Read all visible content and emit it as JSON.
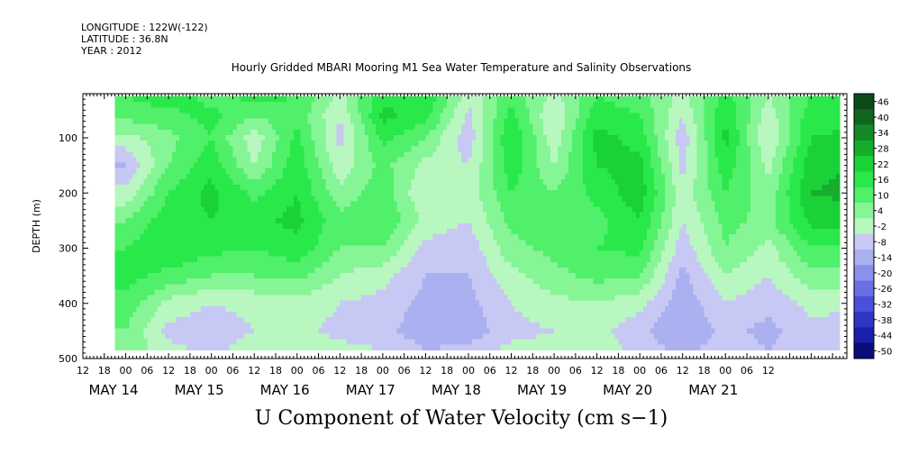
{
  "header": {
    "longitude": "LONGITUDE : 122W(-122)",
    "latitude": "LATITUDE : 36.8N",
    "year": "YEAR : 2012",
    "title": "Hourly Gridded MBARI Mooring M1 Sea Water Temperature and Salinity Observations"
  },
  "chart_data": {
    "type": "heatmap",
    "title": "Hourly Gridded MBARI Mooring M1 Sea Water Temperature and Salinity Observations",
    "bottom_title": "U Component of Water Velocity (cm s−1)",
    "ylabel": "DEPTH (m)",
    "xlabel": "",
    "x_range_hours": [
      0,
      214
    ],
    "y_range_m": [
      20,
      500
    ],
    "y_reversed": true,
    "y_ticks": [
      100,
      200,
      300,
      400,
      500
    ],
    "y_tick_labels": [
      "100",
      "200",
      "300",
      "400",
      "500"
    ],
    "x_hour_tick_labels": [
      "12",
      "18",
      "00",
      "06",
      "12",
      "18",
      "00",
      "06",
      "12",
      "18",
      "00",
      "06",
      "12",
      "18",
      "00",
      "06",
      "12",
      "18",
      "00",
      "06",
      "12",
      "18",
      "00",
      "06",
      "12",
      "18",
      "00",
      "06",
      "12",
      "18",
      "00",
      "06",
      "12"
    ],
    "day_labels": [
      {
        "label": "MAY 14",
        "hour": 0
      },
      {
        "label": "MAY 15",
        "hour": 24
      },
      {
        "label": "MAY 16",
        "hour": 48
      },
      {
        "label": "MAY 17",
        "hour": 72
      },
      {
        "label": "MAY 18",
        "hour": 96
      },
      {
        "label": "MAY 19",
        "hour": 120
      },
      {
        "label": "MAY 20",
        "hour": 144
      },
      {
        "label": "MAY 21",
        "hour": 168
      }
    ],
    "colorbar_labels": [
      "46",
      "40",
      "34",
      "28",
      "22",
      "16",
      "10",
      "4",
      "-2",
      "-8",
      "-14",
      "-20",
      "-26",
      "-32",
      "-38",
      "-44",
      "-50"
    ],
    "colorbar_colors": [
      "#0d4a1a",
      "#10661f",
      "#138a26",
      "#16ad2d",
      "#1ad137",
      "#28e84a",
      "#50f06a",
      "#86f595",
      "#b8f7c0",
      "#c8c8f4",
      "#aab0f0",
      "#8a90ec",
      "#6a70e4",
      "#4a50d8",
      "#2e36c4",
      "#1a20a8",
      "#0a0c7a"
    ],
    "data_start_hour": 9,
    "data_end_hour": 212,
    "surface_depth_m": 25,
    "bottom_depth_m": 485,
    "profiles": [
      {
        "hour": 12,
        "depths": [
          25,
          60,
          100,
          150,
          200,
          250,
          300,
          350,
          400,
          450,
          485
        ],
        "u": [
          10,
          6,
          -4,
          -14,
          -6,
          4,
          10,
          12,
          8,
          4,
          2
        ]
      },
      {
        "hour": 24,
        "depths": [
          25,
          60,
          100,
          150,
          200,
          250,
          300,
          350,
          400,
          450,
          485
        ],
        "u": [
          14,
          8,
          2,
          4,
          10,
          14,
          16,
          8,
          -4,
          -10,
          -6
        ]
      },
      {
        "hour": 36,
        "depths": [
          25,
          60,
          100,
          150,
          200,
          250,
          300,
          350,
          400,
          450,
          485
        ],
        "u": [
          8,
          12,
          10,
          14,
          18,
          16,
          12,
          4,
          -8,
          -12,
          -10
        ]
      },
      {
        "hour": 48,
        "depths": [
          25,
          60,
          100,
          150,
          200,
          250,
          300,
          350,
          400,
          450,
          485
        ],
        "u": [
          12,
          4,
          -6,
          -2,
          8,
          14,
          10,
          4,
          -6,
          -8,
          -4
        ]
      },
      {
        "hour": 60,
        "depths": [
          25,
          60,
          100,
          150,
          200,
          250,
          300,
          350,
          400,
          450,
          485
        ],
        "u": [
          10,
          8,
          12,
          14,
          16,
          18,
          14,
          6,
          -4,
          -6,
          -2
        ]
      },
      {
        "hour": 72,
        "depths": [
          25,
          60,
          100,
          150,
          200,
          250,
          300,
          350,
          400,
          450,
          485
        ],
        "u": [
          -4,
          -8,
          -10,
          -6,
          0,
          6,
          4,
          -2,
          -8,
          -10,
          -6
        ]
      },
      {
        "hour": 84,
        "depths": [
          25,
          60,
          100,
          150,
          200,
          250,
          300,
          350,
          400,
          450,
          485
        ],
        "u": [
          14,
          18,
          12,
          6,
          8,
          10,
          4,
          -6,
          -10,
          -12,
          -8
        ]
      },
      {
        "hour": 96,
        "depths": [
          25,
          60,
          100,
          150,
          200,
          250,
          300,
          350,
          400,
          450,
          485
        ],
        "u": [
          16,
          12,
          4,
          -4,
          -8,
          -4,
          -10,
          -14,
          -16,
          -18,
          -14
        ]
      },
      {
        "hour": 108,
        "depths": [
          25,
          60,
          100,
          150,
          200,
          250,
          300,
          350,
          400,
          450,
          485
        ],
        "u": [
          -6,
          -10,
          -12,
          -8,
          -6,
          -8,
          -12,
          -14,
          -16,
          -18,
          -12
        ]
      },
      {
        "hour": 120,
        "depths": [
          25,
          60,
          100,
          150,
          200,
          250,
          300,
          350,
          400,
          450,
          485
        ],
        "u": [
          8,
          12,
          16,
          14,
          10,
          6,
          2,
          -4,
          -8,
          -10,
          -6
        ]
      },
      {
        "hour": 132,
        "depths": [
          25,
          60,
          100,
          150,
          200,
          250,
          300,
          350,
          400,
          450,
          485
        ],
        "u": [
          -4,
          -8,
          -6,
          -2,
          4,
          8,
          6,
          2,
          -4,
          -8,
          -6
        ]
      },
      {
        "hour": 144,
        "depths": [
          25,
          60,
          100,
          150,
          200,
          250,
          300,
          350,
          400,
          450,
          485
        ],
        "u": [
          10,
          14,
          18,
          16,
          12,
          8,
          10,
          6,
          -2,
          -6,
          -4
        ]
      },
      {
        "hour": 156,
        "depths": [
          25,
          60,
          100,
          150,
          200,
          250,
          300,
          350,
          400,
          450,
          485
        ],
        "u": [
          6,
          10,
          14,
          18,
          20,
          16,
          12,
          4,
          -6,
          -12,
          -10
        ]
      },
      {
        "hour": 168,
        "depths": [
          25,
          60,
          100,
          150,
          200,
          250,
          300,
          350,
          400,
          450,
          485
        ],
        "u": [
          -4,
          -8,
          -12,
          -10,
          -6,
          -8,
          -12,
          -16,
          -18,
          -20,
          -16
        ]
      },
      {
        "hour": 180,
        "depths": [
          25,
          60,
          100,
          150,
          200,
          250,
          300,
          350,
          400,
          450,
          485
        ],
        "u": [
          12,
          16,
          18,
          14,
          10,
          6,
          4,
          -2,
          -8,
          -12,
          -10
        ]
      },
      {
        "hour": 192,
        "depths": [
          25,
          60,
          100,
          150,
          200,
          250,
          300,
          350,
          400,
          450,
          485
        ],
        "u": [
          -2,
          -6,
          -8,
          -4,
          0,
          2,
          -4,
          -8,
          -12,
          -16,
          -14
        ]
      },
      {
        "hour": 204,
        "depths": [
          25,
          60,
          100,
          150,
          200,
          250,
          300,
          350,
          400,
          450,
          485
        ],
        "u": [
          10,
          14,
          16,
          20,
          22,
          18,
          10,
          2,
          -6,
          -10,
          -8
        ]
      }
    ]
  }
}
